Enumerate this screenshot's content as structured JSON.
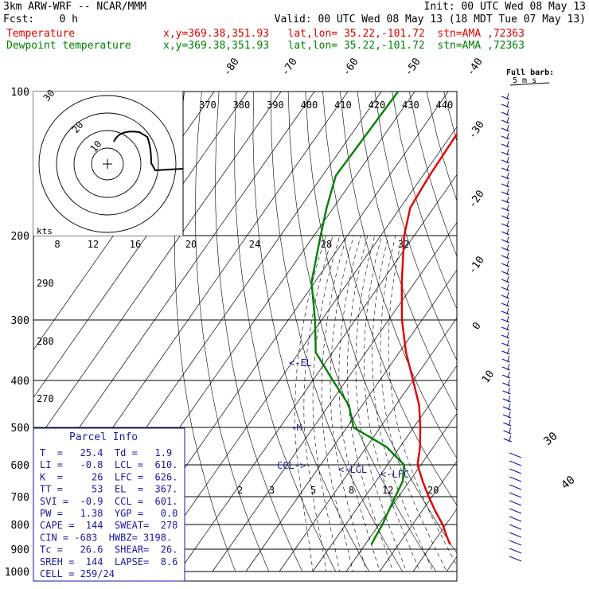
{
  "header": {
    "model": "3km ARW-WRF -- NCAR/MMM",
    "init": "Init: 00 UTC Wed 08 May 13",
    "fcst": "Fcst:    0 h",
    "valid": "Valid: 00 UTC Wed 08 May 13 (18 MDT Tue 07 May 13)",
    "temp_label": "Temperature",
    "dew_label": "Dewpoint temperature",
    "temp_loc": "x,y=369.38,351.93   lat,lon= 35.22,-101.72  stn=AMA ,72363",
    "dew_loc": "x,y=369.38,351.93   lat,lon= 35.22,-101.72  stn=AMA ,72363"
  },
  "colors": {
    "temperature": "#e00000",
    "dewpoint": "#008000",
    "frame": "#000000",
    "barb": "#1a1aa0"
  },
  "chart_data": {
    "type": "skew-t",
    "pressure_levels": [
      "100",
      "200",
      "300",
      "400",
      "500",
      "600",
      "700",
      "800",
      "900",
      "1000"
    ],
    "top_isotherm_labels": [
      "-80",
      "-70",
      "-60",
      "-50",
      "-40"
    ],
    "right_isotherm_labels": [
      "-30",
      "-20",
      "-10",
      "0",
      "10"
    ],
    "dry_adiabat_labels": [
      "370",
      "380",
      "390",
      "400",
      "410",
      "420",
      "430",
      "440"
    ],
    "left_labels": [
      "290",
      "280",
      "270"
    ],
    "mixing_ratio_labels": [
      "2",
      "3",
      "5",
      "8",
      "12",
      "20"
    ],
    "lower_labels": [
      "30",
      "40"
    ],
    "hodograph": {
      "unit": "kts",
      "ring_labels": [
        "8",
        "12",
        "16",
        "20",
        "24",
        "28",
        "32"
      ],
      "inner_labels": [
        "10",
        "20",
        "30"
      ]
    },
    "full_barb": {
      "line1": "Full barb:",
      "line2": "5 m s"
    },
    "markers": {
      "el": "EL",
      "lcl": "LCL",
      "lfc": "LFC",
      "ccl": "CCL",
      "m": "M"
    },
    "temperature": [
      {
        "p": 100,
        "t": -59
      },
      {
        "p": 150,
        "t": -58
      },
      {
        "p": 175,
        "t": -57
      },
      {
        "p": 200,
        "t": -53
      },
      {
        "p": 250,
        "t": -44
      },
      {
        "p": 300,
        "t": -36
      },
      {
        "p": 350,
        "t": -28
      },
      {
        "p": 400,
        "t": -20
      },
      {
        "p": 450,
        "t": -13
      },
      {
        "p": 500,
        "t": -8
      },
      {
        "p": 550,
        "t": -4
      },
      {
        "p": 600,
        "t": -1
      },
      {
        "p": 650,
        "t": 4
      },
      {
        "p": 700,
        "t": 9
      },
      {
        "p": 750,
        "t": 14
      },
      {
        "p": 800,
        "t": 19
      },
      {
        "p": 850,
        "t": 23
      },
      {
        "p": 880,
        "t": 25.4
      }
    ],
    "dewpoint": [
      {
        "p": 100,
        "t": -85
      },
      {
        "p": 150,
        "t": -86
      },
      {
        "p": 175,
        "t": -82
      },
      {
        "p": 200,
        "t": -78
      },
      {
        "p": 250,
        "t": -71
      },
      {
        "p": 300,
        "t": -62
      },
      {
        "p": 350,
        "t": -55
      },
      {
        "p": 400,
        "t": -44
      },
      {
        "p": 450,
        "t": -34
      },
      {
        "p": 500,
        "t": -28
      },
      {
        "p": 550,
        "t": -14
      },
      {
        "p": 600,
        "t": -5
      },
      {
        "p": 650,
        "t": -2
      },
      {
        "p": 700,
        "t": -1
      },
      {
        "p": 750,
        "t": 0
      },
      {
        "p": 800,
        "t": 1
      },
      {
        "p": 850,
        "t": 1.5
      },
      {
        "p": 880,
        "t": 1.9
      }
    ]
  },
  "parcel_info": {
    "title": "Parcel Info",
    "rows": [
      "T  =   25.4  Td =   1.9",
      "LI =   -0.8  LCL =  610.",
      "K  =     26  LFC =  626.",
      "TT =     53  EL  =  367.",
      "SVI =  -0.9  CCL =  601.",
      "PW =   1.38  YGP =   0.0",
      "CAPE =  144  SWEAT=  278",
      "CIN = -683  HWBZ= 3198.",
      "Tc =   26.6  SHEAR=  26.",
      "SREH =  144  LAPSE=  8.6",
      "CELL = 259/24"
    ]
  }
}
